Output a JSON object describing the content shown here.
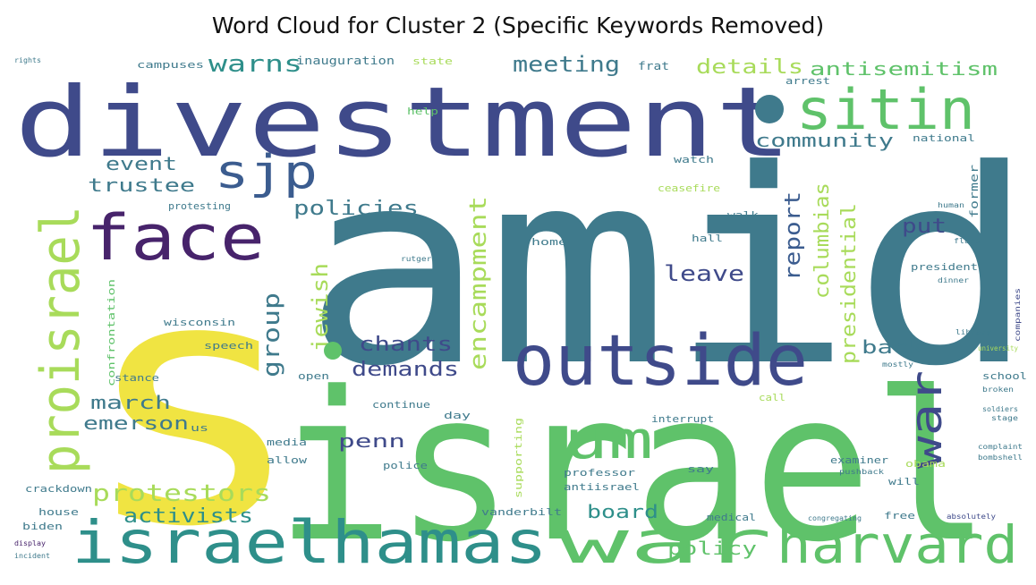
{
  "title": "Word Cloud for Cluster 2 (Specific Keywords Removed)",
  "colors": {
    "yellow": "#f0e442",
    "lightgreen": "#a8db5a",
    "green": "#5fc26a",
    "teal": "#2e8f8a",
    "bluegreen": "#3f7a8c",
    "blue": "#3b5c8f",
    "indigo": "#3f4a8a",
    "purple": "#47236b"
  },
  "words": [
    "amid",
    "s",
    "israel",
    "divestment",
    "sitin",
    "outside",
    "israelhamas",
    "war",
    "harvard",
    "face",
    "proisrael",
    "sjp",
    "um",
    "war",
    "warns",
    "meeting",
    "details",
    "antisemitism",
    "community",
    "event",
    "trustee",
    "policies",
    "encampment",
    "report",
    "put",
    "columbias",
    "presidential",
    "leave",
    "jewish",
    "group",
    "chants",
    "demands",
    "back",
    "march",
    "emerson",
    "penn",
    "protestors",
    "activists",
    "board",
    "policy",
    "inauguration",
    "state",
    "campuses",
    "frat",
    "arrest",
    "national",
    "former",
    "help",
    "ceasefire",
    "walk",
    "hall",
    "home",
    "president",
    "confrontation",
    "wisconsin",
    "speech",
    "stance",
    "crackdown",
    "house",
    "biden",
    "open",
    "media",
    "allow",
    "continue",
    "day",
    "us",
    "police",
    "supporting",
    "professor",
    "antiisrael",
    "interrupt",
    "vanderbilt",
    "medical",
    "free",
    "obama",
    "say",
    "examiner",
    "will",
    "school",
    "call",
    "congregating",
    "absolutely",
    "display",
    "incident",
    "rights",
    "protesting",
    "rutgers",
    "library",
    "companies",
    "complaint",
    "bombshell",
    "pushback",
    "university",
    "mostly",
    "stage",
    "soldiers",
    "broken",
    "dinner",
    "flags",
    "watch",
    "human"
  ]
}
